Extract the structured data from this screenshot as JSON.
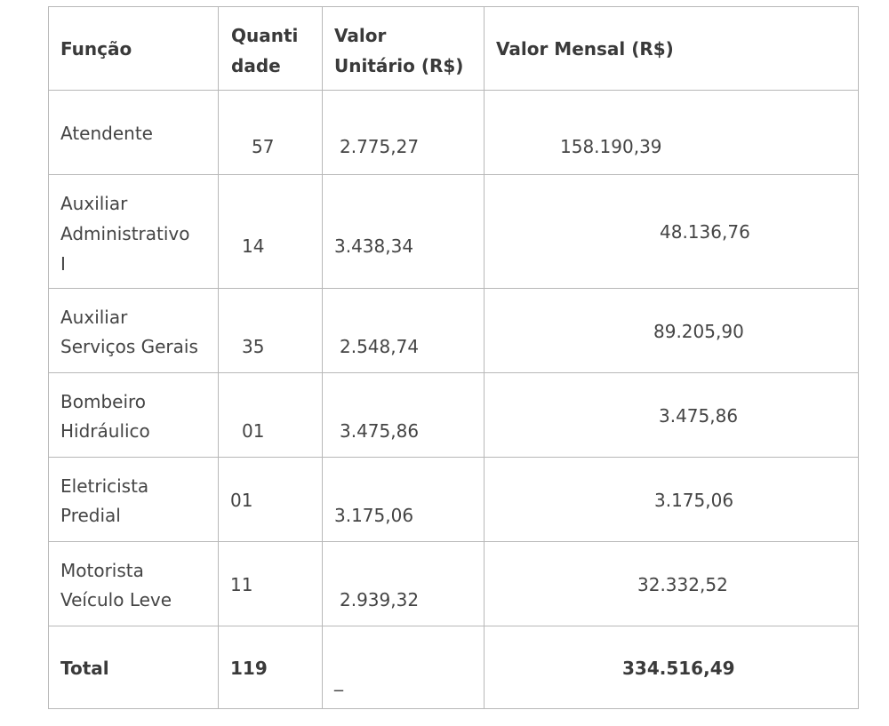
{
  "table": {
    "headers": {
      "funcao": "Função",
      "quantidade_line1": "Quanti",
      "quantidade_line2": "dade",
      "valor_unitario_line1": "Valor",
      "valor_unitario_line2": "Unitário (R$)",
      "valor_mensal": "Valor Mensal (R$)"
    },
    "rows": [
      {
        "funcao_line1": "Atendente",
        "funcao_line2": "",
        "funcao_line3": "",
        "quantidade": "57",
        "valor_unitario": "2.775,27",
        "valor_mensal": "158.190,39"
      },
      {
        "funcao_line1": "Auxiliar",
        "funcao_line2": "Administrativo",
        "funcao_line3": "I",
        "quantidade": "14",
        "valor_unitario": "3.438,34",
        "valor_mensal": "48.136,76"
      },
      {
        "funcao_line1": "Auxiliar",
        "funcao_line2": "Serviços Gerais",
        "funcao_line3": "",
        "quantidade": "35",
        "valor_unitario": "2.548,74",
        "valor_mensal": "89.205,90"
      },
      {
        "funcao_line1": "Bombeiro",
        "funcao_line2": "Hidráulico",
        "funcao_line3": "",
        "quantidade": "01",
        "valor_unitario": "3.475,86",
        "valor_mensal": "3.475,86"
      },
      {
        "funcao_line1": "Eletricista",
        "funcao_line2": "Predial",
        "funcao_line3": "",
        "quantidade": "01",
        "valor_unitario": "3.175,06",
        "valor_mensal": "3.175,06"
      },
      {
        "funcao_line1": "Motorista",
        "funcao_line2": "Veículo Leve",
        "funcao_line3": "",
        "quantidade": "11",
        "valor_unitario": "2.939,32",
        "valor_mensal": "32.332,52"
      }
    ],
    "total": {
      "label": "Total",
      "quantidade": "119",
      "valor_unitario": "_",
      "valor_mensal": "334.516,49"
    }
  }
}
